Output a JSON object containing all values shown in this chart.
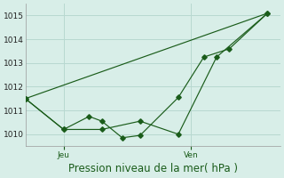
{
  "background_color": "#d8eee8",
  "grid_color": "#b8d8d0",
  "line_color": "#1a5c1a",
  "ylabel": "Pression niveau de la mer( hPa )",
  "ylim": [
    1009.5,
    1015.5
  ],
  "yticks": [
    1010,
    1011,
    1012,
    1013,
    1014,
    1015
  ],
  "xlim": [
    0,
    10
  ],
  "x_jeu": 1.5,
  "x_ven": 6.5,
  "xtick_positions": [
    1.5,
    6.5
  ],
  "xtick_labels": [
    "Jeu",
    "Ven"
  ],
  "line1_x": [
    0,
    1.5,
    3.0,
    4.5,
    6.0,
    7.5,
    9.5
  ],
  "line1_y": [
    1011.5,
    1010.2,
    1010.2,
    1010.55,
    1010.0,
    1013.25,
    1015.1
  ],
  "line2_x": [
    0,
    1.5,
    2.5,
    3.0,
    3.8,
    4.5,
    6.0,
    7.0,
    8.0,
    9.5
  ],
  "line2_y": [
    1011.5,
    1010.2,
    1010.75,
    1010.55,
    1009.85,
    1009.95,
    1011.55,
    1013.25,
    1013.6,
    1015.1
  ],
  "line3_x": [
    0,
    9.5
  ],
  "line3_y": [
    1011.5,
    1015.1
  ],
  "tick_fontsize": 6.5,
  "label_fontsize": 8.5
}
